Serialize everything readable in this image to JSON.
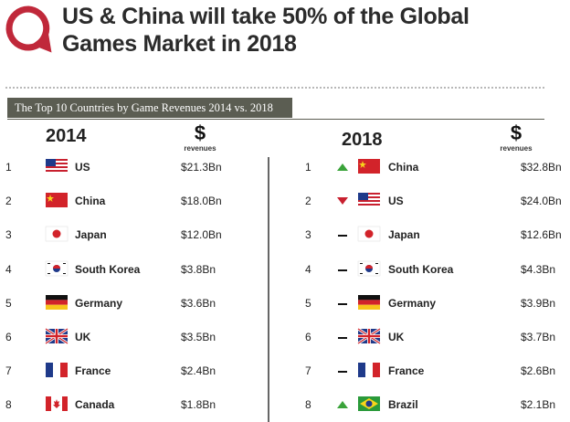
{
  "header": {
    "title_line1": "US & China will take 50% of the Global",
    "title_line2": "Games Market in 2018",
    "accent_color": "#c0283a"
  },
  "band": {
    "text": "The Top 10 Countries by Game Revenues 2014 vs. 2018"
  },
  "left": {
    "year": "2014",
    "currency_symbol": "$",
    "currency_label": "revenues",
    "rows": [
      {
        "rank": "1",
        "country": "US",
        "revenue": "$21.3Bn",
        "flag": "us-flag"
      },
      {
        "rank": "2",
        "country": "China",
        "revenue": "$18.0Bn",
        "flag": "china-flag"
      },
      {
        "rank": "3",
        "country": "Japan",
        "revenue": "$12.0Bn",
        "flag": "japan-flag"
      },
      {
        "rank": "4",
        "country": "South Korea",
        "revenue": "$3.8Bn",
        "flag": "south-korea-flag"
      },
      {
        "rank": "5",
        "country": "Germany",
        "revenue": "$3.6Bn",
        "flag": "germany-flag"
      },
      {
        "rank": "6",
        "country": "UK",
        "revenue": "$3.5Bn",
        "flag": "uk-flag"
      },
      {
        "rank": "7",
        "country": "France",
        "revenue": "$2.4Bn",
        "flag": "france-flag"
      },
      {
        "rank": "8",
        "country": "Canada",
        "revenue": "$1.8Bn",
        "flag": "canada-flag"
      }
    ]
  },
  "right": {
    "year": "2018",
    "currency_symbol": "$",
    "currency_label": "revenues",
    "rows": [
      {
        "rank": "1",
        "country": "China",
        "revenue": "$32.8Bn",
        "flag": "china-flag",
        "trend": "up"
      },
      {
        "rank": "2",
        "country": "US",
        "revenue": "$24.0Bn",
        "flag": "us-flag",
        "trend": "down"
      },
      {
        "rank": "3",
        "country": "Japan",
        "revenue": "$12.6Bn",
        "flag": "japan-flag",
        "trend": "same"
      },
      {
        "rank": "4",
        "country": "South Korea",
        "revenue": "$4.3Bn",
        "flag": "south-korea-flag",
        "trend": "same"
      },
      {
        "rank": "5",
        "country": "Germany",
        "revenue": "$3.9Bn",
        "flag": "germany-flag",
        "trend": "same"
      },
      {
        "rank": "6",
        "country": "UK",
        "revenue": "$3.7Bn",
        "flag": "uk-flag",
        "trend": "same"
      },
      {
        "rank": "7",
        "country": "France",
        "revenue": "$2.6Bn",
        "flag": "france-flag",
        "trend": "same"
      },
      {
        "rank": "8",
        "country": "Brazil",
        "revenue": "$2.1Bn",
        "flag": "brazil-flag",
        "trend": "up"
      }
    ]
  },
  "colors": {
    "up": "#3aa33a",
    "down": "#c8202f",
    "same": "#111111",
    "band": "#5b5d52"
  }
}
